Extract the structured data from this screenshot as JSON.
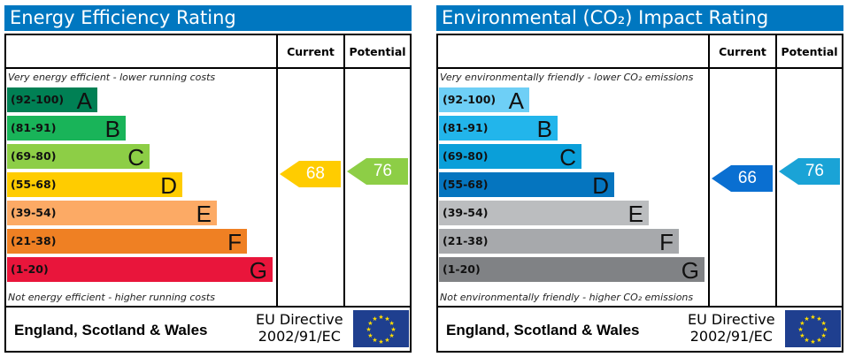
{
  "panels": [
    {
      "title": "Energy Efficiency Rating",
      "current_label": "Current",
      "potential_label": "Potential",
      "top_note": "Very energy efficient - lower running costs",
      "bottom_note": "Not energy efficient - higher running costs",
      "bands": [
        {
          "range": "(92-100)",
          "letter": "A",
          "color": "#008054"
        },
        {
          "range": "(81-91)",
          "letter": "B",
          "color": "#19b459"
        },
        {
          "range": "(69-80)",
          "letter": "C",
          "color": "#8dce46"
        },
        {
          "range": "(55-68)",
          "letter": "D",
          "color": "#ffcc00"
        },
        {
          "range": "(39-54)",
          "letter": "E",
          "color": "#fcaa65"
        },
        {
          "range": "(21-38)",
          "letter": "F",
          "color": "#ef8023"
        },
        {
          "range": "(1-20)",
          "letter": "G",
          "color": "#e9153b"
        }
      ],
      "current": {
        "value": "68",
        "color": "#ffcc00"
      },
      "potential": {
        "value": "76",
        "color": "#8dce46"
      },
      "footer": {
        "region": "England, Scotland & Wales",
        "directive_line1": "EU Directive",
        "directive_line2": "2002/91/EC"
      }
    },
    {
      "title": "Environmental (CO₂) Impact Rating",
      "current_label": "Current",
      "potential_label": "Potential",
      "top_note": "Very environmentally friendly - lower CO₂ emissions",
      "bottom_note": "Not environmentally friendly - higher CO₂ emissions",
      "bands": [
        {
          "range": "(92-100)",
          "letter": "A",
          "color": "#6ecff6"
        },
        {
          "range": "(81-91)",
          "letter": "B",
          "color": "#22b5eb"
        },
        {
          "range": "(69-80)",
          "letter": "C",
          "color": "#0a9fd9"
        },
        {
          "range": "(55-68)",
          "letter": "D",
          "color": "#0575bf"
        },
        {
          "range": "(39-54)",
          "letter": "E",
          "color": "#bbbdbf"
        },
        {
          "range": "(21-38)",
          "letter": "F",
          "color": "#a7a9ac"
        },
        {
          "range": "(1-20)",
          "letter": "G",
          "color": "#808285"
        }
      ],
      "current": {
        "value": "66",
        "color": "#0a6fd1"
      },
      "potential": {
        "value": "76",
        "color": "#1aa3d6"
      },
      "footer": {
        "region": "England, Scotland & Wales",
        "directive_line1": "EU Directive",
        "directive_line2": "2002/91/EC"
      }
    }
  ]
}
